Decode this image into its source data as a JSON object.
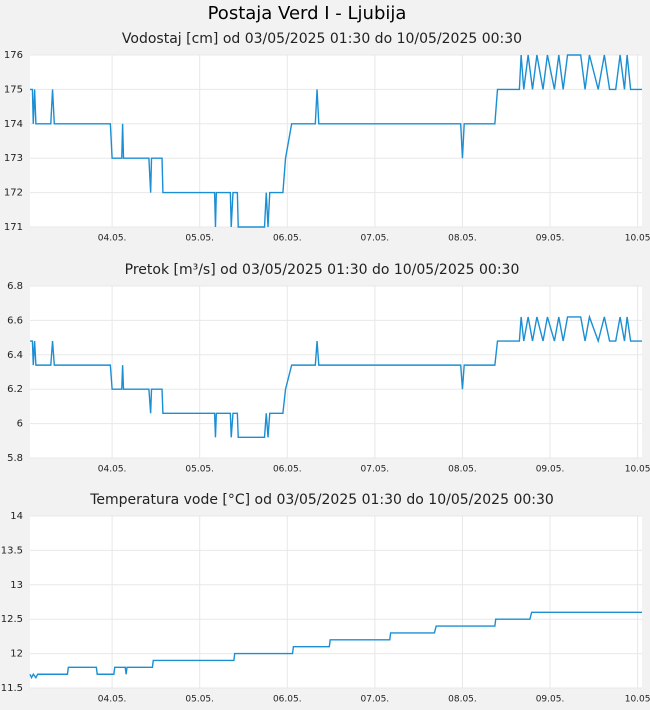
{
  "page_title": "Postaja Verd I - Ljubija",
  "chart_data": [
    {
      "type": "line",
      "title": "Vodostaj [cm] od 03/05/2025 01:30 do 10/05/2025 00:30",
      "xlim": [
        3.0625,
        10.05
      ],
      "ylim": [
        171,
        176
      ],
      "yticks": [
        171,
        172,
        173,
        174,
        175,
        176
      ],
      "xticks": [
        {
          "value": 4,
          "label": "04.05."
        },
        {
          "value": 5,
          "label": "05.05."
        },
        {
          "value": 6,
          "label": "06.05."
        },
        {
          "value": 7,
          "label": "07.05."
        },
        {
          "value": 8,
          "label": "08.05."
        },
        {
          "value": 9,
          "label": "09.05."
        },
        {
          "value": 10,
          "label": "10.05"
        }
      ],
      "grid": true,
      "x": [
        3.0625,
        3.09,
        3.1,
        3.115,
        3.13,
        3.3,
        3.32,
        3.34,
        3.98,
        4.0,
        4.11,
        4.12,
        4.13,
        4.42,
        4.44,
        4.45,
        4.57,
        4.58,
        5.17,
        5.18,
        5.19,
        5.35,
        5.36,
        5.38,
        5.43,
        5.44,
        5.74,
        5.76,
        5.78,
        5.8,
        5.95,
        5.98,
        6.05,
        6.32,
        6.34,
        6.36,
        7.98,
        8.0,
        8.02,
        8.37,
        8.4,
        8.65,
        8.67,
        8.7,
        8.75,
        8.8,
        8.85,
        8.92,
        8.97,
        9.05,
        9.1,
        9.15,
        9.2,
        9.35,
        9.4,
        9.45,
        9.55,
        9.62,
        9.68,
        9.75,
        9.8,
        9.85,
        9.88,
        9.92,
        10.05
      ],
      "series": [
        {
          "color": "#1b8fd4",
          "values": [
            175,
            175,
            174,
            175,
            174,
            174,
            175,
            174,
            174,
            173,
            173,
            174,
            173,
            173,
            172,
            173,
            173,
            172,
            172,
            171,
            172,
            172,
            171,
            172,
            172,
            171,
            171,
            172,
            171,
            172,
            172,
            173,
            174,
            174,
            175,
            174,
            174,
            173,
            174,
            174,
            175,
            175,
            176,
            175,
            176,
            175,
            176,
            175,
            176,
            175,
            176,
            175,
            176,
            176,
            175,
            176,
            175,
            176,
            175,
            175,
            176,
            175,
            176,
            175,
            175
          ]
        }
      ]
    },
    {
      "type": "line",
      "title": "Pretok [m³/s] od 03/05/2025 01:30 do 10/05/2025 00:30",
      "xlim": [
        3.0625,
        10.05
      ],
      "ylim": [
        5.8,
        6.8
      ],
      "yticks": [
        5.8,
        6,
        6.2,
        6.4,
        6.6,
        6.8
      ],
      "xticks": [
        {
          "value": 4,
          "label": "04.05."
        },
        {
          "value": 5,
          "label": "05.05."
        },
        {
          "value": 6,
          "label": "06.05."
        },
        {
          "value": 7,
          "label": "07.05."
        },
        {
          "value": 8,
          "label": "08.05."
        },
        {
          "value": 9,
          "label": "09.05."
        },
        {
          "value": 10,
          "label": "10.05"
        }
      ],
      "grid": true,
      "x": [
        3.0625,
        3.09,
        3.1,
        3.115,
        3.13,
        3.3,
        3.32,
        3.34,
        3.98,
        4.0,
        4.11,
        4.12,
        4.13,
        4.42,
        4.44,
        4.45,
        4.57,
        4.58,
        5.17,
        5.18,
        5.19,
        5.35,
        5.36,
        5.38,
        5.43,
        5.44,
        5.74,
        5.76,
        5.78,
        5.8,
        5.95,
        5.98,
        6.05,
        6.32,
        6.34,
        6.36,
        7.98,
        8.0,
        8.02,
        8.37,
        8.4,
        8.65,
        8.67,
        8.7,
        8.75,
        8.8,
        8.85,
        8.92,
        8.97,
        9.05,
        9.1,
        9.15,
        9.2,
        9.35,
        9.4,
        9.45,
        9.55,
        9.62,
        9.68,
        9.75,
        9.8,
        9.85,
        9.88,
        9.92,
        10.05
      ],
      "series": [
        {
          "color": "#1b8fd4",
          "values": [
            6.48,
            6.48,
            6.34,
            6.48,
            6.34,
            6.34,
            6.48,
            6.34,
            6.34,
            6.2,
            6.2,
            6.34,
            6.2,
            6.2,
            6.06,
            6.2,
            6.2,
            6.06,
            6.06,
            5.92,
            6.06,
            6.06,
            5.92,
            6.06,
            6.06,
            5.92,
            5.92,
            6.06,
            5.92,
            6.06,
            6.06,
            6.2,
            6.34,
            6.34,
            6.48,
            6.34,
            6.34,
            6.2,
            6.34,
            6.34,
            6.48,
            6.48,
            6.62,
            6.48,
            6.62,
            6.48,
            6.62,
            6.48,
            6.62,
            6.48,
            6.62,
            6.48,
            6.62,
            6.62,
            6.48,
            6.62,
            6.48,
            6.62,
            6.48,
            6.48,
            6.62,
            6.48,
            6.62,
            6.48,
            6.48
          ]
        }
      ]
    },
    {
      "type": "line",
      "title": "Temperatura vode [°C] od 03/05/2025 01:30 do 10/05/2025 00:30",
      "xlim": [
        3.0625,
        10.05
      ],
      "ylim": [
        11.5,
        14
      ],
      "yticks": [
        11.5,
        12,
        12.5,
        13,
        13.5,
        14
      ],
      "xticks": [
        {
          "value": 4,
          "label": "04.05."
        },
        {
          "value": 5,
          "label": "05.05."
        },
        {
          "value": 6,
          "label": "06.05."
        },
        {
          "value": 7,
          "label": "07.05."
        },
        {
          "value": 8,
          "label": "08.05."
        },
        {
          "value": 9,
          "label": "09.05."
        },
        {
          "value": 10,
          "label": "10.05"
        }
      ],
      "grid": true,
      "x": [
        3.0625,
        3.08,
        3.1,
        3.13,
        3.15,
        3.49,
        3.5,
        3.82,
        3.83,
        4.02,
        4.03,
        4.15,
        4.16,
        4.17,
        4.46,
        4.47,
        5.39,
        5.4,
        6.06,
        6.07,
        6.48,
        6.49,
        7.17,
        7.18,
        7.68,
        7.7,
        8.37,
        8.38,
        8.77,
        8.79,
        10.05
      ],
      "series": [
        {
          "color": "#1b8fd4",
          "values": [
            11.7,
            11.65,
            11.7,
            11.65,
            11.7,
            11.7,
            11.8,
            11.8,
            11.7,
            11.7,
            11.8,
            11.8,
            11.7,
            11.8,
            11.8,
            11.9,
            11.9,
            12,
            12,
            12.1,
            12.1,
            12.2,
            12.2,
            12.3,
            12.3,
            12.4,
            12.4,
            12.5,
            12.5,
            12.6,
            12.6
          ]
        }
      ]
    }
  ]
}
